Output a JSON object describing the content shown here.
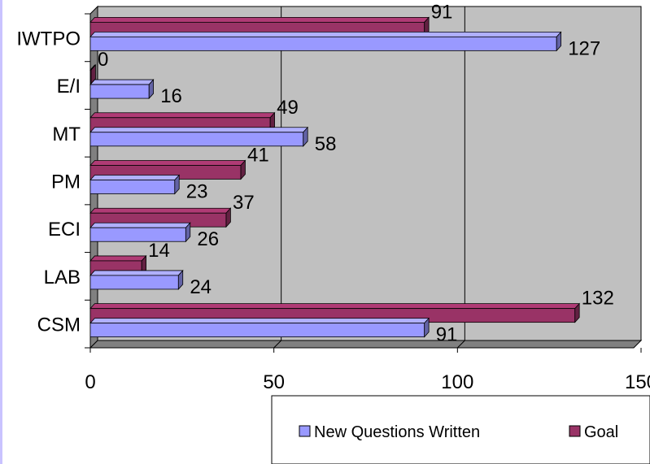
{
  "chart_data": {
    "type": "bar",
    "orientation": "horizontal",
    "categories": [
      "IWTPO",
      "E/I",
      "MT",
      "PM",
      "ECI",
      "LAB",
      "CSM"
    ],
    "series": [
      {
        "name": "New Questions Written",
        "values": [
          127,
          16,
          58,
          23,
          26,
          24,
          91
        ],
        "color": "#9999ff"
      },
      {
        "name": "Goal",
        "values": [
          91,
          0,
          49,
          41,
          37,
          14,
          132
        ],
        "color": "#993366"
      }
    ],
    "xlim": [
      0,
      150
    ],
    "xticks": [
      "0",
      "50",
      "100",
      "150"
    ],
    "grid": true,
    "legend_position": "bottom-right",
    "plot_background": "#c0c0c0"
  }
}
